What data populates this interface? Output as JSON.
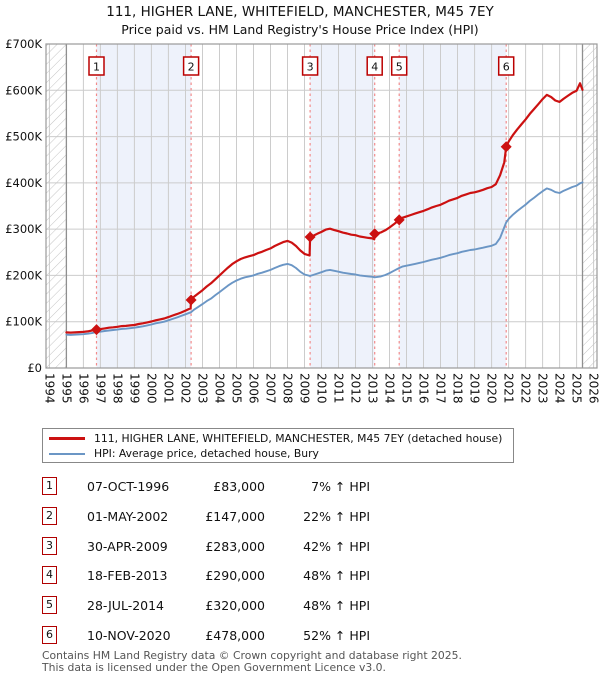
{
  "title": {
    "line1": "111, HIGHER LANE, WHITEFIELD, MANCHESTER, M45 7EY",
    "line2": "Price paid vs. HM Land Registry's House Price Index (HPI)"
  },
  "chart_data": {
    "type": "line",
    "unit": "GBP thousands",
    "x_axis": {
      "range": [
        1993.8,
        2026.2
      ],
      "ticks": [
        1994,
        1995,
        1996,
        1997,
        1998,
        1999,
        2000,
        2001,
        2002,
        2003,
        2004,
        2005,
        2006,
        2007,
        2008,
        2009,
        2010,
        2011,
        2012,
        2013,
        2014,
        2015,
        2016,
        2017,
        2018,
        2019,
        2020,
        2021,
        2022,
        2023,
        2024,
        2025,
        2026
      ]
    },
    "y_axis": {
      "range": [
        0,
        700
      ],
      "tick_values": [
        0,
        100,
        200,
        300,
        400,
        500,
        600,
        700
      ],
      "tick_labels": [
        "£0",
        "£100K",
        "£200K",
        "£300K",
        "£400K",
        "£500K",
        "£600K",
        "£700K"
      ]
    },
    "data_start": 1995.0,
    "data_end": 2025.35,
    "hatch_regions": [
      [
        1993.8,
        1995.0
      ],
      [
        2025.35,
        2026.2
      ]
    ],
    "bands": [
      [
        1996.77,
        2002.33
      ],
      [
        2009.33,
        2013.13
      ],
      [
        2014.57,
        2020.86
      ]
    ],
    "sales": [
      {
        "label": "1",
        "date": "07-OCT-1996",
        "x": 1996.77,
        "price_k": 83
      },
      {
        "label": "2",
        "date": "01-MAY-2002",
        "x": 2002.33,
        "price_k": 147
      },
      {
        "label": "3",
        "date": "30-APR-2009",
        "x": 2009.33,
        "price_k": 283
      },
      {
        "label": "4",
        "date": "18-FEB-2013",
        "x": 2013.13,
        "price_k": 290
      },
      {
        "label": "5",
        "date": "28-JUL-2014",
        "x": 2014.57,
        "price_k": 320
      },
      {
        "label": "6",
        "date": "10-NOV-2020",
        "x": 2020.86,
        "price_k": 478
      }
    ],
    "series": [
      {
        "name": "111, HIGHER LANE, WHITEFIELD, MANCHESTER, M45 7EY (detached house)",
        "color": "#cc1111",
        "points": [
          [
            1995,
            77
          ],
          [
            1995.25,
            76.5
          ],
          [
            1995.5,
            77
          ],
          [
            1995.75,
            77.5
          ],
          [
            1996,
            78
          ],
          [
            1996.25,
            79
          ],
          [
            1996.5,
            81
          ],
          [
            1996.77,
            83
          ],
          [
            1997,
            84
          ],
          [
            1997.25,
            85.5
          ],
          [
            1997.5,
            87
          ],
          [
            1997.75,
            88
          ],
          [
            1998,
            89
          ],
          [
            1998.25,
            90.5
          ],
          [
            1998.5,
            91
          ],
          [
            1998.75,
            92
          ],
          [
            1999,
            93
          ],
          [
            1999.25,
            95
          ],
          [
            1999.5,
            96.5
          ],
          [
            1999.75,
            98.5
          ],
          [
            2000,
            100.5
          ],
          [
            2000.25,
            103
          ],
          [
            2000.5,
            105
          ],
          [
            2000.75,
            107
          ],
          [
            2001,
            110
          ],
          [
            2001.25,
            113.5
          ],
          [
            2001.5,
            116.5
          ],
          [
            2001.75,
            120
          ],
          [
            2002,
            124
          ],
          [
            2002.3,
            129
          ],
          [
            2002.33,
            147
          ],
          [
            2002.5,
            154
          ],
          [
            2002.75,
            161
          ],
          [
            2003,
            168
          ],
          [
            2003.25,
            176
          ],
          [
            2003.5,
            183
          ],
          [
            2003.75,
            191.5
          ],
          [
            2004,
            200
          ],
          [
            2004.25,
            208.5
          ],
          [
            2004.5,
            217
          ],
          [
            2004.75,
            224.5
          ],
          [
            2005,
            230.5
          ],
          [
            2005.25,
            235.5
          ],
          [
            2005.5,
            239
          ],
          [
            2005.75,
            241.5
          ],
          [
            2006,
            244
          ],
          [
            2006.25,
            248
          ],
          [
            2006.5,
            251
          ],
          [
            2006.75,
            255
          ],
          [
            2007,
            258.5
          ],
          [
            2007.25,
            263.5
          ],
          [
            2007.5,
            268
          ],
          [
            2007.75,
            272
          ],
          [
            2008,
            274.5
          ],
          [
            2008.25,
            271
          ],
          [
            2008.5,
            263.5
          ],
          [
            2008.75,
            254
          ],
          [
            2009,
            246.5
          ],
          [
            2009.3,
            243
          ],
          [
            2009.33,
            283
          ],
          [
            2009.5,
            285.5
          ],
          [
            2009.75,
            290
          ],
          [
            2010,
            294
          ],
          [
            2010.25,
            299
          ],
          [
            2010.5,
            301
          ],
          [
            2010.75,
            298
          ],
          [
            2011,
            295.5
          ],
          [
            2011.25,
            292.5
          ],
          [
            2011.5,
            290.5
          ],
          [
            2011.75,
            288
          ],
          [
            2012,
            287
          ],
          [
            2012.25,
            284
          ],
          [
            2012.5,
            282.5
          ],
          [
            2012.75,
            281
          ],
          [
            2013,
            280
          ],
          [
            2013.1,
            278
          ],
          [
            2013.13,
            290
          ],
          [
            2013.5,
            293
          ],
          [
            2013.75,
            297.5
          ],
          [
            2014,
            303.5
          ],
          [
            2014.25,
            310.5
          ],
          [
            2014.57,
            320
          ],
          [
            2014.75,
            324.5
          ],
          [
            2015,
            327.5
          ],
          [
            2015.25,
            330.5
          ],
          [
            2015.5,
            333.5
          ],
          [
            2015.75,
            336.5
          ],
          [
            2016,
            339.5
          ],
          [
            2016.25,
            343
          ],
          [
            2016.5,
            347
          ],
          [
            2016.75,
            350
          ],
          [
            2017,
            352.5
          ],
          [
            2017.25,
            357
          ],
          [
            2017.5,
            361.5
          ],
          [
            2017.75,
            364.5
          ],
          [
            2018,
            367.5
          ],
          [
            2018.25,
            372
          ],
          [
            2018.5,
            375
          ],
          [
            2018.75,
            378
          ],
          [
            2019,
            379.5
          ],
          [
            2019.25,
            382
          ],
          [
            2019.5,
            385
          ],
          [
            2019.75,
            388.5
          ],
          [
            2020,
            391
          ],
          [
            2020.25,
            397
          ],
          [
            2020.5,
            416.5
          ],
          [
            2020.75,
            444.5
          ],
          [
            2020.86,
            478
          ],
          [
            2021,
            489
          ],
          [
            2021.25,
            503
          ],
          [
            2021.5,
            515
          ],
          [
            2021.75,
            526
          ],
          [
            2022,
            537
          ],
          [
            2022.25,
            549
          ],
          [
            2022.5,
            559.5
          ],
          [
            2022.75,
            570
          ],
          [
            2023,
            581
          ],
          [
            2023.25,
            590
          ],
          [
            2023.5,
            585.5
          ],
          [
            2023.75,
            578
          ],
          [
            2024,
            575
          ],
          [
            2024.25,
            582
          ],
          [
            2024.5,
            588.5
          ],
          [
            2024.75,
            594.5
          ],
          [
            2025,
            599
          ],
          [
            2025.2,
            615
          ],
          [
            2025.35,
            601
          ]
        ]
      },
      {
        "name": "HPI: Average price, detached house, Bury",
        "color": "#6b96c5",
        "points": [
          [
            1995,
            72
          ],
          [
            1995.25,
            71.5
          ],
          [
            1995.5,
            72
          ],
          [
            1995.75,
            72.5
          ],
          [
            1996,
            73
          ],
          [
            1996.25,
            74
          ],
          [
            1996.5,
            75.5
          ],
          [
            1996.77,
            77.5
          ],
          [
            1997,
            78.5
          ],
          [
            1997.25,
            80
          ],
          [
            1997.5,
            81
          ],
          [
            1997.75,
            82
          ],
          [
            1998,
            83
          ],
          [
            1998.25,
            84.5
          ],
          [
            1998.5,
            85
          ],
          [
            1998.75,
            86
          ],
          [
            1999,
            87
          ],
          [
            1999.25,
            88.5
          ],
          [
            1999.5,
            90
          ],
          [
            1999.75,
            92
          ],
          [
            2000,
            94
          ],
          [
            2000.25,
            96.5
          ],
          [
            2000.5,
            98
          ],
          [
            2000.75,
            100
          ],
          [
            2001,
            103
          ],
          [
            2001.25,
            106
          ],
          [
            2001.5,
            109
          ],
          [
            2001.75,
            112.5
          ],
          [
            2002,
            116
          ],
          [
            2002.33,
            120.5
          ],
          [
            2002.5,
            126
          ],
          [
            2002.75,
            132
          ],
          [
            2003,
            138
          ],
          [
            2003.25,
            144.5
          ],
          [
            2003.5,
            150
          ],
          [
            2003.75,
            157
          ],
          [
            2004,
            164
          ],
          [
            2004.25,
            171
          ],
          [
            2004.5,
            178
          ],
          [
            2004.75,
            184
          ],
          [
            2005,
            189
          ],
          [
            2005.25,
            193
          ],
          [
            2005.5,
            196
          ],
          [
            2005.75,
            198
          ],
          [
            2006,
            200
          ],
          [
            2006.25,
            203.5
          ],
          [
            2006.5,
            206
          ],
          [
            2006.75,
            209
          ],
          [
            2007,
            212
          ],
          [
            2007.25,
            216
          ],
          [
            2007.5,
            220
          ],
          [
            2007.75,
            223
          ],
          [
            2008,
            225
          ],
          [
            2008.25,
            222
          ],
          [
            2008.5,
            216
          ],
          [
            2008.75,
            208
          ],
          [
            2009,
            202
          ],
          [
            2009.33,
            199
          ],
          [
            2009.5,
            201
          ],
          [
            2009.75,
            204
          ],
          [
            2010,
            207
          ],
          [
            2010.25,
            210.5
          ],
          [
            2010.5,
            212
          ],
          [
            2010.75,
            210
          ],
          [
            2011,
            208
          ],
          [
            2011.25,
            206
          ],
          [
            2011.5,
            204.5
          ],
          [
            2011.75,
            203
          ],
          [
            2012,
            202
          ],
          [
            2012.25,
            200
          ],
          [
            2012.5,
            199
          ],
          [
            2012.75,
            198
          ],
          [
            2013,
            197
          ],
          [
            2013.13,
            196
          ],
          [
            2013.5,
            198
          ],
          [
            2013.75,
            201
          ],
          [
            2014,
            205
          ],
          [
            2014.25,
            210
          ],
          [
            2014.57,
            216
          ],
          [
            2014.75,
            219
          ],
          [
            2015,
            221
          ],
          [
            2015.25,
            223
          ],
          [
            2015.5,
            225
          ],
          [
            2015.75,
            227
          ],
          [
            2016,
            229
          ],
          [
            2016.25,
            231.5
          ],
          [
            2016.5,
            234
          ],
          [
            2016.75,
            236
          ],
          [
            2017,
            238
          ],
          [
            2017.25,
            241
          ],
          [
            2017.5,
            244
          ],
          [
            2017.75,
            246
          ],
          [
            2018,
            248
          ],
          [
            2018.25,
            251
          ],
          [
            2018.5,
            253
          ],
          [
            2018.75,
            255
          ],
          [
            2019,
            256
          ],
          [
            2019.25,
            258
          ],
          [
            2019.5,
            260
          ],
          [
            2019.75,
            262
          ],
          [
            2020,
            264
          ],
          [
            2020.25,
            268
          ],
          [
            2020.5,
            281
          ],
          [
            2020.86,
            314.5
          ],
          [
            2021,
            322
          ],
          [
            2021.25,
            331
          ],
          [
            2021.5,
            339
          ],
          [
            2021.75,
            346
          ],
          [
            2022,
            353
          ],
          [
            2022.25,
            361
          ],
          [
            2022.5,
            368
          ],
          [
            2022.75,
            375
          ],
          [
            2023,
            382
          ],
          [
            2023.25,
            388
          ],
          [
            2023.5,
            385
          ],
          [
            2023.75,
            380
          ],
          [
            2024,
            378
          ],
          [
            2024.25,
            383
          ],
          [
            2024.5,
            387
          ],
          [
            2024.75,
            391
          ],
          [
            2025,
            394
          ],
          [
            2025.2,
            399
          ],
          [
            2025.35,
            401
          ]
        ]
      }
    ],
    "style": {
      "band_color": "#eef2fb",
      "grid_color": "#cccccc",
      "border_color": "#999999",
      "hatch_color": "#c4c4c4",
      "boundary_color": "#8f8f8f",
      "sale_line_color": "#f28b8b",
      "marker_box_border": "#bb0000",
      "text_color": "#111111"
    }
  },
  "legend": {
    "items": [
      {
        "label": "111, HIGHER LANE, WHITEFIELD, MANCHESTER, M45 7EY (detached house)",
        "color": "#cc1111",
        "thickness": 3
      },
      {
        "label": "HPI: Average price, detached house, Bury",
        "color": "#6b96c5",
        "thickness": 2
      }
    ]
  },
  "table": {
    "rows": [
      {
        "num": "1",
        "date": "07-OCT-1996",
        "price": "£83,000",
        "delta": "7% ↑ HPI"
      },
      {
        "num": "2",
        "date": "01-MAY-2002",
        "price": "£147,000",
        "delta": "22% ↑ HPI"
      },
      {
        "num": "3",
        "date": "30-APR-2009",
        "price": "£283,000",
        "delta": "42% ↑ HPI"
      },
      {
        "num": "4",
        "date": "18-FEB-2013",
        "price": "£290,000",
        "delta": "48% ↑ HPI"
      },
      {
        "num": "5",
        "date": "28-JUL-2014",
        "price": "£320,000",
        "delta": "48% ↑ HPI"
      },
      {
        "num": "6",
        "date": "10-NOV-2020",
        "price": "£478,000",
        "delta": "52% ↑ HPI"
      }
    ]
  },
  "footer": {
    "line1": "Contains HM Land Registry data © Crown copyright and database right 2025.",
    "line2": "This data is licensed under the Open Government Licence v3.0."
  }
}
